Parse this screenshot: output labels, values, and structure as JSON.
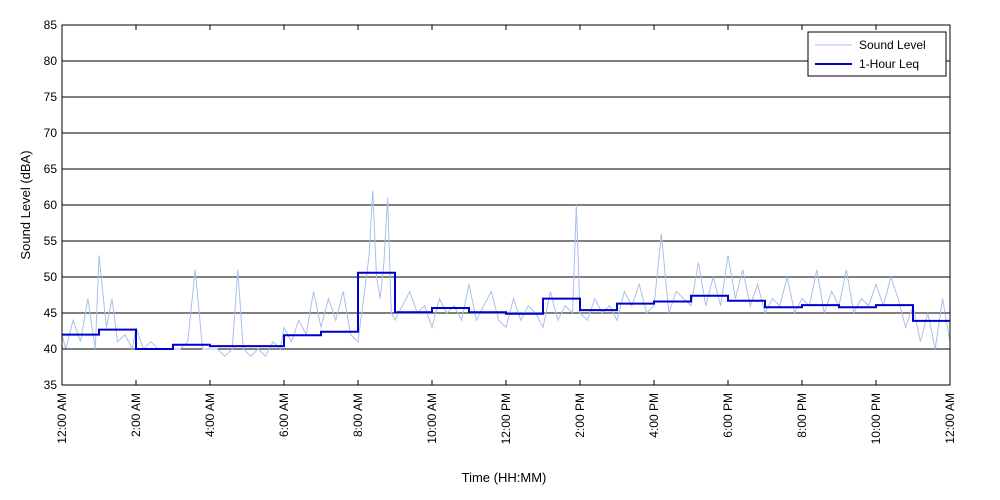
{
  "chart_data": {
    "type": "line",
    "title": "",
    "xlabel": "Time (HH:MM)",
    "ylabel": "Sound Level (dBA)",
    "xlim": [
      0,
      24
    ],
    "ylim": [
      35,
      85
    ],
    "grid": "horizontal",
    "legend_position": "top-right",
    "y_ticks": [
      35,
      40,
      45,
      50,
      55,
      60,
      65,
      70,
      75,
      80,
      85
    ],
    "x_ticks": [
      {
        "hour": 0,
        "label": "12:00 AM"
      },
      {
        "hour": 2,
        "label": "2:00 AM"
      },
      {
        "hour": 4,
        "label": "4:00 AM"
      },
      {
        "hour": 6,
        "label": "6:00 AM"
      },
      {
        "hour": 8,
        "label": "8:00 AM"
      },
      {
        "hour": 10,
        "label": "10:00 AM"
      },
      {
        "hour": 12,
        "label": "12:00 PM"
      },
      {
        "hour": 14,
        "label": "2:00 PM"
      },
      {
        "hour": 16,
        "label": "4:00 PM"
      },
      {
        "hour": 18,
        "label": "6:00 PM"
      },
      {
        "hour": 20,
        "label": "8:00 PM"
      },
      {
        "hour": 22,
        "label": "10:00 PM"
      },
      {
        "hour": 24,
        "label": "12:00 AM"
      }
    ],
    "series": [
      {
        "name": "Sound Level",
        "color": "#a8c0ec",
        "style": "thin-line",
        "x": [
          0,
          0.1,
          0.3,
          0.5,
          0.7,
          0.9,
          1.0,
          1.2,
          1.35,
          1.5,
          1.7,
          1.9,
          2.0,
          2.2,
          2.4,
          2.6,
          2.8,
          3.0,
          3.2,
          3.4,
          3.6,
          3.8,
          4.0,
          4.2,
          4.4,
          4.6,
          4.75,
          4.9,
          5.1,
          5.3,
          5.5,
          5.7,
          5.9,
          6.0,
          6.2,
          6.4,
          6.6,
          6.8,
          7.0,
          7.2,
          7.4,
          7.6,
          7.8,
          8.0,
          8.15,
          8.3,
          8.4,
          8.5,
          8.6,
          8.7,
          8.8,
          8.9,
          9.0,
          9.2,
          9.4,
          9.6,
          9.8,
          10.0,
          10.2,
          10.4,
          10.6,
          10.8,
          11.0,
          11.2,
          11.4,
          11.6,
          11.8,
          12.0,
          12.2,
          12.4,
          12.6,
          12.8,
          13.0,
          13.2,
          13.4,
          13.6,
          13.8,
          13.9,
          14.0,
          14.2,
          14.4,
          14.6,
          14.8,
          15.0,
          15.2,
          15.4,
          15.6,
          15.8,
          16.0,
          16.2,
          16.4,
          16.6,
          16.8,
          17.0,
          17.2,
          17.4,
          17.6,
          17.8,
          18.0,
          18.2,
          18.4,
          18.6,
          18.8,
          19.0,
          19.2,
          19.4,
          19.6,
          19.8,
          20.0,
          20.2,
          20.4,
          20.6,
          20.8,
          21.0,
          21.2,
          21.4,
          21.6,
          21.8,
          22.0,
          22.2,
          22.4,
          22.6,
          22.8,
          23.0,
          23.2,
          23.4,
          23.6,
          23.8,
          24.0
        ],
        "y": [
          42,
          40,
          44,
          41,
          47,
          40,
          53,
          43,
          47,
          41,
          42,
          40,
          43,
          40,
          41,
          40,
          40,
          40,
          40,
          41,
          51,
          40,
          40,
          40,
          39,
          40,
          51,
          40,
          39,
          40,
          39,
          41,
          40,
          43,
          41,
          44,
          42,
          48,
          43,
          47,
          44,
          48,
          42,
          41,
          47,
          53,
          62,
          50,
          47,
          52,
          61,
          45,
          44,
          46,
          48,
          45,
          46,
          43,
          47,
          45,
          46,
          44,
          49,
          44,
          46,
          48,
          44,
          43,
          47,
          44,
          46,
          45,
          43,
          48,
          44,
          46,
          45,
          60,
          45,
          44,
          47,
          45,
          46,
          44,
          48,
          46,
          49,
          45,
          46,
          56,
          45,
          48,
          47,
          46,
          52,
          46,
          50,
          46,
          53,
          47,
          51,
          46,
          49,
          45,
          47,
          46,
          50,
          45,
          47,
          46,
          51,
          45,
          48,
          46,
          51,
          45,
          47,
          46,
          49,
          46,
          50,
          47,
          43,
          46,
          41,
          45,
          40,
          47,
          41
        ]
      },
      {
        "name": "1-Hour Leq",
        "color": "#0000cc",
        "style": "step",
        "values": [
          42.0,
          42.7,
          40.0,
          40.6,
          40.4,
          40.4,
          41.9,
          42.4,
          50.6,
          45.1,
          45.7,
          45.1,
          44.9,
          47.0,
          45.4,
          46.3,
          46.6,
          47.4,
          46.7,
          45.8,
          46.1,
          45.8,
          46.1,
          43.9
        ]
      }
    ]
  }
}
